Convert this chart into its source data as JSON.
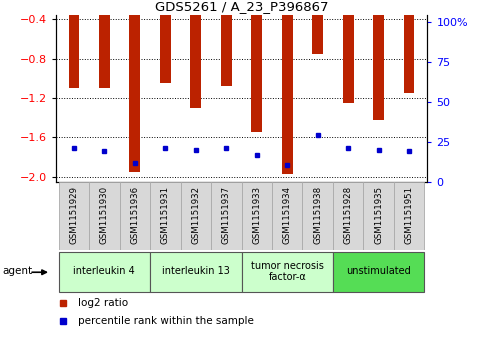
{
  "title": "GDS5261 / A_23_P396867",
  "samples": [
    "GSM1151929",
    "GSM1151930",
    "GSM1151936",
    "GSM1151931",
    "GSM1151932",
    "GSM1151937",
    "GSM1151933",
    "GSM1151934",
    "GSM1151938",
    "GSM1151928",
    "GSM1151935",
    "GSM1151951"
  ],
  "log2_ratio": [
    -1.1,
    -1.1,
    -1.95,
    -1.05,
    -1.3,
    -1.08,
    -1.55,
    -1.97,
    -0.75,
    -1.25,
    -1.42,
    -1.15
  ],
  "percentile": [
    20,
    18,
    11,
    20,
    19,
    20,
    16,
    10,
    28,
    20,
    19,
    18
  ],
  "groups": [
    {
      "label": "interleukin 4",
      "start": 0,
      "end": 3,
      "color": "#ccffcc"
    },
    {
      "label": "interleukin 13",
      "start": 3,
      "end": 6,
      "color": "#ccffcc"
    },
    {
      "label": "tumor necrosis\nfactor-α",
      "start": 6,
      "end": 9,
      "color": "#ccffcc"
    },
    {
      "label": "unstimulated",
      "start": 9,
      "end": 12,
      "color": "#55dd55"
    }
  ],
  "bar_color": "#bb2200",
  "dot_color": "#0000cc",
  "ylim_left": [
    -2.05,
    -0.35
  ],
  "yticks_left": [
    -2.0,
    -1.6,
    -1.2,
    -0.8,
    -0.4
  ],
  "ylim_right": [
    0,
    105
  ],
  "yticks_right": [
    0,
    25,
    50,
    75,
    100
  ],
  "plot_bg": "#ffffff",
  "cell_bg": "#d8d8d8",
  "cell_border": "#aaaaaa",
  "agent_label": "agent",
  "legend_log2": "log2 ratio",
  "legend_pct": "percentile rank within the sample"
}
